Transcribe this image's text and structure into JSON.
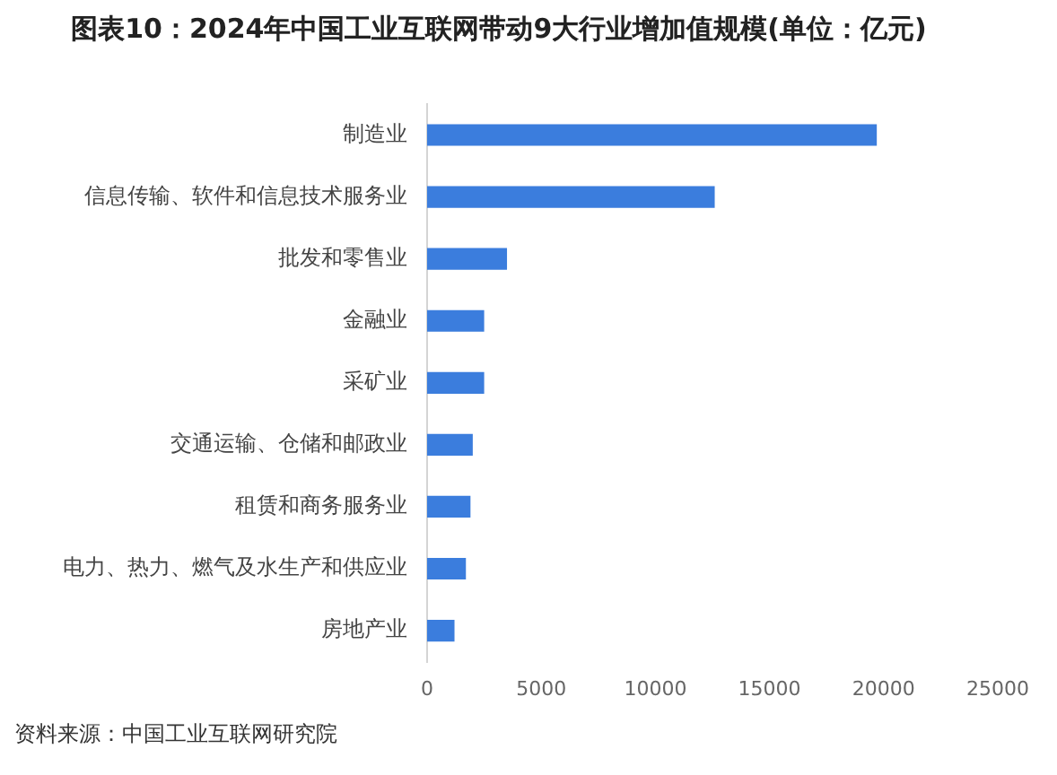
{
  "chart_data": {
    "type": "bar",
    "orientation": "horizontal",
    "title": "图表10：2024年中国工业互联网带动9大行业增加值规模(单位：亿元)",
    "categories": [
      "制造业",
      "信息传输、软件和信息技术服务业",
      "批发和零售业",
      "金融业",
      "采矿业",
      "交通运输、仓储和邮政业",
      "租赁和商务服务业",
      "电力、热力、燃气及水生产和供应业",
      "房地产业"
    ],
    "values": [
      19700,
      12600,
      3500,
      2500,
      2500,
      2000,
      1900,
      1700,
      1200
    ],
    "color": "#3b7ddd",
    "xlim": [
      0,
      25000
    ],
    "xticks": [
      0,
      5000,
      10000,
      15000,
      20000,
      25000
    ],
    "annotations": [
      "资料来源：中国工业互联网研究院"
    ]
  }
}
